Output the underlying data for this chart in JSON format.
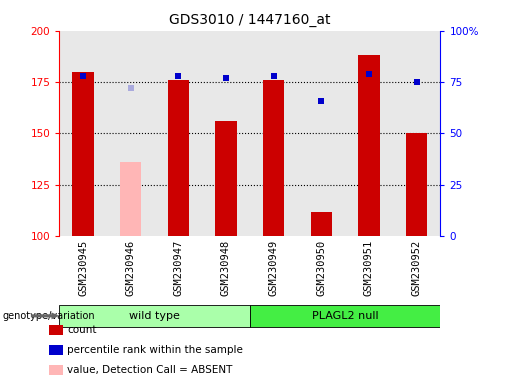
{
  "title": "GDS3010 / 1447160_at",
  "samples": [
    "GSM230945",
    "GSM230946",
    "GSM230947",
    "GSM230948",
    "GSM230949",
    "GSM230950",
    "GSM230951",
    "GSM230952"
  ],
  "count_values": [
    180,
    null,
    176,
    156,
    176,
    112,
    188,
    150
  ],
  "count_absent_values": [
    null,
    136,
    null,
    null,
    null,
    null,
    null,
    null
  ],
  "percentile_values": [
    78,
    null,
    78,
    77,
    78,
    66,
    79,
    75
  ],
  "percentile_absent_values": [
    null,
    72,
    null,
    null,
    null,
    null,
    null,
    null
  ],
  "ylim_left": [
    100,
    200
  ],
  "ylim_right": [
    0,
    100
  ],
  "yticks_left": [
    100,
    125,
    150,
    175,
    200
  ],
  "yticks_right": [
    0,
    25,
    50,
    75,
    100
  ],
  "yticklabels_right": [
    "0",
    "25",
    "50",
    "75",
    "100%"
  ],
  "bar_width": 0.45,
  "count_color": "#cc0000",
  "count_absent_color": "#ffb6b6",
  "percentile_color": "#0000cc",
  "percentile_absent_color": "#aaaadd",
  "plot_bg_color": "#e8e8e8",
  "sample_bg_color": "#cccccc",
  "wildtype_color": "#aaffaa",
  "plagl2_color": "#44ee44",
  "title_fontsize": 10,
  "tick_fontsize": 7.5,
  "legend_fontsize": 7.5,
  "group_fontsize": 8,
  "groups": [
    {
      "label": "wild type",
      "indices": [
        0,
        1,
        2,
        3
      ]
    },
    {
      "label": "PLAGL2 null",
      "indices": [
        4,
        5,
        6,
        7
      ]
    }
  ]
}
